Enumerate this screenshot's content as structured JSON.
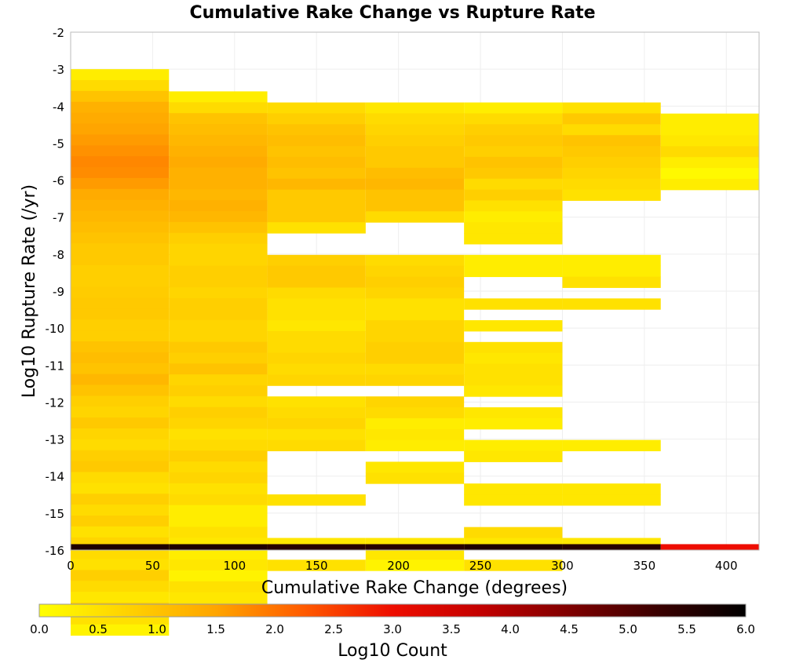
{
  "chart_data": {
    "type": "heatmap",
    "title": "Cumulative Rake Change vs Rupture Rate",
    "xlabel": "Cumulative Rake Change (degrees)",
    "ylabel": "Log10 Rupture Rate (/yr)",
    "xlim": [
      0,
      420
    ],
    "ylim": [
      -16,
      -2
    ],
    "x_ticks": [
      "0",
      "50",
      "100",
      "150",
      "200",
      "250",
      "300",
      "350",
      "400"
    ],
    "y_ticks": [
      "-2",
      "-3",
      "-4",
      "-5",
      "-6",
      "-7",
      "-8",
      "-9",
      "-10",
      "-11",
      "-12",
      "-13",
      "-14",
      "-15",
      "-16"
    ],
    "grid": true,
    "x_bin_width": 60,
    "y_bin_height": 0.2943,
    "x_bins": [
      0,
      60,
      120,
      180,
      240,
      300,
      360
    ],
    "colorbar": {
      "label": "Log10 Count",
      "range": [
        0,
        6
      ],
      "ticks": [
        "0.0",
        "0.5",
        "1.0",
        "1.5",
        "2.0",
        "2.5",
        "3.0",
        "3.5",
        "4.0",
        "4.5",
        "5.0",
        "5.5",
        "6.0"
      ],
      "stops": [
        "#ffff00",
        "#ffd200",
        "#ffa500",
        "#ff5a00",
        "#ee0d00",
        "#c30000",
        "#7f0000",
        "#3a0000",
        "#000000"
      ]
    },
    "columns": [
      {
        "x": 0,
        "y_top": -3.0,
        "values": [
          0.3,
          0.6,
          1.0,
          1.3,
          1.4,
          1.5,
          1.6,
          1.7,
          1.8,
          1.75,
          1.6,
          1.4,
          1.3,
          1.2,
          1.1,
          1.0,
          0.9,
          0.9,
          0.8,
          0.8,
          0.85,
          0.9,
          0.9,
          0.8,
          0.8,
          1.0,
          1.1,
          1.0,
          1.2,
          1.0,
          0.8,
          0.7,
          0.9,
          0.7,
          0.6,
          0.8,
          0.9,
          0.6,
          0.5,
          0.8,
          0.6,
          0.8,
          0.5,
          0.7,
          0.6,
          0.5,
          0.8,
          0.6,
          0.4,
          0.8,
          0.5,
          0.2,
          5.6
        ]
      },
      {
        "x": 60,
        "y_top": -3.6,
        "values": [
          0.3,
          0.6,
          1.0,
          1.1,
          1.2,
          1.3,
          1.4,
          1.3,
          1.3,
          1.2,
          1.3,
          1.2,
          1.0,
          0.8,
          0.7,
          0.7,
          0.8,
          0.8,
          0.7,
          0.8,
          0.8,
          0.7,
          0.7,
          0.9,
          0.8,
          1.0,
          0.7,
          0.8,
          0.6,
          0.8,
          0.7,
          0.5,
          0.6,
          0.8,
          0.6,
          0.7,
          0.5,
          0.6,
          0.3,
          0.3,
          0.5,
          0.4,
          0.3,
          0.4,
          0.2,
          0.5,
          0.4,
          0.6,
          5.6
        ]
      },
      {
        "x": 120,
        "y_top": -3.9,
        "values": [
          0.6,
          0.8,
          1.0,
          1.1,
          1.0,
          1.1,
          1.0,
          1.2,
          0.9,
          0.9,
          0.9,
          0.5,
          null,
          null,
          0.8,
          0.9,
          0.9,
          0.6,
          0.5,
          0.5,
          0.4,
          0.6,
          0.6,
          0.7,
          0.6,
          0.7,
          null,
          0.5,
          0.6,
          0.7,
          0.5,
          0.6,
          null,
          null,
          null,
          null,
          0.5,
          null,
          null,
          null,
          0.4,
          null,
          0.5,
          5.5
        ]
      },
      {
        "x": 180,
        "y_top": -3.9,
        "values": [
          0.4,
          0.6,
          0.7,
          0.8,
          0.9,
          0.9,
          1.1,
          1.2,
          1.0,
          1.0,
          0.6,
          null,
          null,
          null,
          0.6,
          0.7,
          0.8,
          0.7,
          0.5,
          0.5,
          0.7,
          0.7,
          0.8,
          0.8,
          0.6,
          0.7,
          null,
          0.7,
          0.6,
          0.3,
          0.4,
          0.3,
          null,
          0.4,
          0.5,
          null,
          null,
          null,
          null,
          null,
          0.4,
          0.4,
          0.2,
          5.5
        ]
      },
      {
        "x": 240,
        "y_top": -3.9,
        "values": [
          0.3,
          0.6,
          0.8,
          0.9,
          0.8,
          1.0,
          0.9,
          0.6,
          0.8,
          0.5,
          0.3,
          0.4,
          0.4,
          null,
          0.3,
          0.3,
          null,
          null,
          0.5,
          null,
          0.4,
          null,
          0.5,
          0.4,
          0.5,
          0.5,
          0.4,
          null,
          0.4,
          0.3,
          null,
          0.3,
          0.4,
          null,
          null,
          0.4,
          0.4,
          null,
          null,
          0.6,
          0.4,
          null,
          0.5,
          5.6
        ]
      },
      {
        "x": 300,
        "y_top": -3.9,
        "values": [
          0.5,
          0.9,
          0.6,
          1.0,
          0.9,
          0.8,
          0.7,
          0.6,
          0.5,
          null,
          null,
          null,
          null,
          null,
          0.3,
          0.3,
          0.5,
          null,
          0.5,
          null,
          null,
          null,
          null,
          null,
          null,
          null,
          null,
          null,
          null,
          null,
          null,
          0.3,
          null,
          null,
          null,
          0.4,
          0.4,
          null,
          null,
          null,
          0.4,
          null,
          null,
          5.5
        ]
      },
      {
        "x": 360,
        "y_top": -4.2,
        "values": [
          0.3,
          0.3,
          0.4,
          0.6,
          0.3,
          0.1,
          0.3,
          null,
          null,
          null,
          null,
          null,
          null,
          null,
          null,
          null,
          null,
          null,
          null,
          null,
          null,
          null,
          null,
          null,
          null,
          null,
          null,
          null,
          null,
          null,
          null,
          null,
          null,
          null,
          null,
          null,
          null,
          null,
          null,
          null,
          null,
          null,
          3.0
        ]
      }
    ]
  }
}
